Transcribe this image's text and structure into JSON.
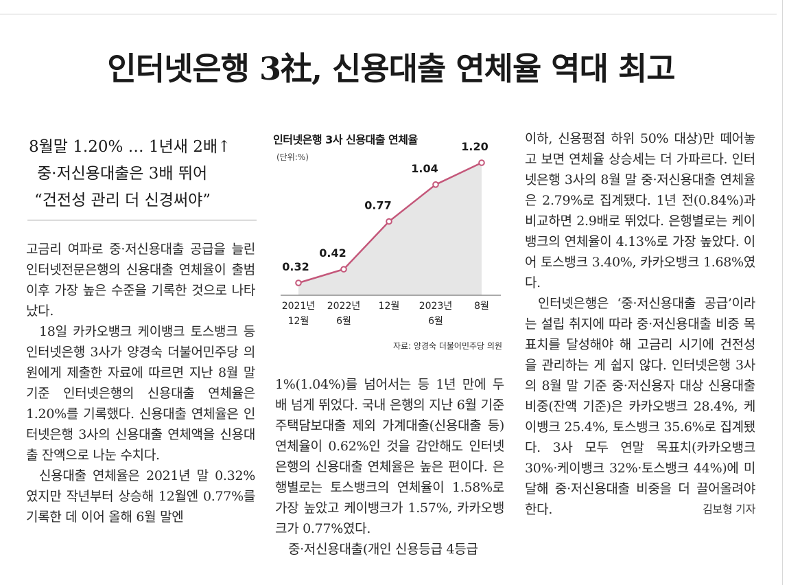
{
  "headline": "인터넷은행 3社, 신용대출 연체율 역대 최고",
  "subhead": [
    "8월말 1.20% … 1년새 2배↑",
    "중·저신용대출은 3배 뛰어",
    "“건전성 관리 더 신경써야”"
  ],
  "body": {
    "col1": [
      "고금리 여파로 중·저신용대출 공급을 늘린 인터넷전문은행의 신용대출 연체율이 출범 이후 가장 높은 수준을 기록한 것으로 나타났다.",
      "18일 카카오뱅크 케이뱅크 토스뱅크 등 인터넷은행 3사가 양경숙 더불어민주당 의원에게 제출한 자료에 따르면 지난 8월 말 기준 인터넷은행의 신용대출 연체율은 1.20%를 기록했다. 신용대출 연체율은 인터넷은행 3사의 신용대출 연체액을 신용대출 잔액으로 나눈 수치다.",
      "신용대출 연체율은 2021년 말 0.32%였지만 작년부터 상승해 12월엔 0.77%를 기록한 데 이어 올해 6월 말엔"
    ],
    "col2": [
      "1%(1.04%)를 넘어서는 등 1년 만에 두 배 넘게 뛰었다. 국내 은행의 지난 6월 기준 주택담보대출 제외 가계대출(신용대출 등) 연체율이 0.62%인 것을 감안해도 인터넷은행의 신용대출 연체율은 높은 편이다. 은행별로는 토스뱅크의 연체율이 1.58%로 가장 높았고 케이뱅크가 1.57%, 카카오뱅크가 0.77%였다.",
      "중·저신용대출(개인 신용등급 4등급"
    ],
    "col3": [
      "이하, 신용평점 하위 50% 대상)만 떼어놓고 보면 연체율 상승세는 더 가파르다. 인터넷은행 3사의 8월 말 중·저신용대출 연체율은 2.79%로 집계됐다. 1년 전(0.84%)과 비교하면 2.9배로 뛰었다. 은행별로는 케이뱅크의 연체율이 4.13%로 가장 높았다. 이어 토스뱅크 3.40%, 카카오뱅크 1.68%였다.",
      "인터넷은행은 ‘중·저신용대출 공급’이라는 설립 취지에 따라 중·저신용대출 비중 목표치를 달성해야 해 고금리 시기에 건전성을 관리하는 게 쉽지 않다. 인터넷은행 3사의 8월 말 기준 중·저신용자 대상 신용대출 비중(잔액 기준)은 카카오뱅크 28.4%, 케이뱅크 25.4%, 토스뱅크 35.6%로 집계됐다. 3사 모두 연말 목표치(카카오뱅크 30%·케이뱅크 32%·토스뱅크 44%)에 미달해 중·저신용대출 비중을 더 끌어올려야 한다."
    ],
    "byline": "김보형 기자"
  },
  "chart_data": {
    "type": "area",
    "title": "인터넷은행 3사 신용대출 연체율",
    "unit": "(단위:%)",
    "categories": [
      [
        "2021년",
        "12월"
      ],
      [
        "2022년",
        "6월"
      ],
      [
        "12월",
        ""
      ],
      [
        "2023년",
        "6월"
      ],
      [
        "8월",
        ""
      ]
    ],
    "values": [
      0.32,
      0.42,
      0.77,
      1.04,
      1.2
    ],
    "value_labels": [
      "0.32",
      "0.42",
      "0.77",
      "1.04",
      "1.20"
    ],
    "source": "자료: 양경숙 더불어민주당 의원",
    "colors": {
      "line": "#c4577a",
      "fill": "#e6e6e6",
      "axis": "#555555"
    }
  }
}
